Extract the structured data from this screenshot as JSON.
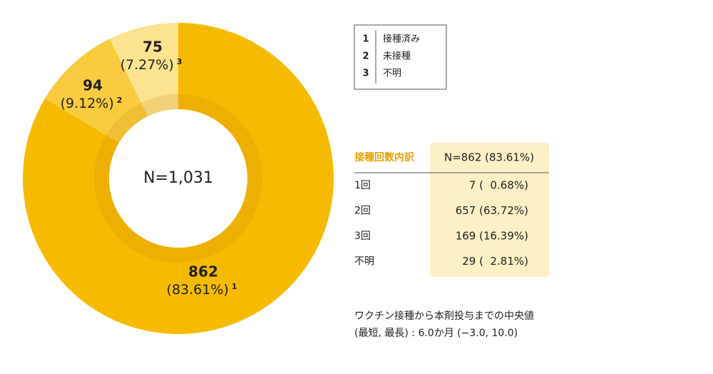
{
  "chart_data": {
    "type": "donut",
    "keys": [
      "1",
      "2",
      "3"
    ],
    "categories": [
      "接種済み",
      "未接種",
      "不明"
    ],
    "values": [
      862,
      94,
      75
    ],
    "percent_values": [
      83.61,
      9.12,
      7.27
    ],
    "percent_labels": [
      "(83.61%)",
      "(9.12%)",
      "(7.27%)"
    ],
    "colors": [
      "#f6bb00",
      "#f8cc3e",
      "#fbe38f"
    ],
    "center_label": "N=1,031"
  },
  "table": {
    "header": [
      "接種回数内訳",
      "N=862 (83.61%)"
    ],
    "rows": [
      [
        "1回",
        "7 (  0.68%)"
      ],
      [
        "2回",
        "657 (63.72%)"
      ],
      [
        "3回",
        "169 (16.39%)"
      ],
      [
        "不明",
        "29 (  2.81%)"
      ]
    ]
  },
  "note": [
    "ワクチン接種から本剤投与までの中央値",
    "(最短, 最長) : 6.0か月 (−3.0, 10.0)"
  ]
}
